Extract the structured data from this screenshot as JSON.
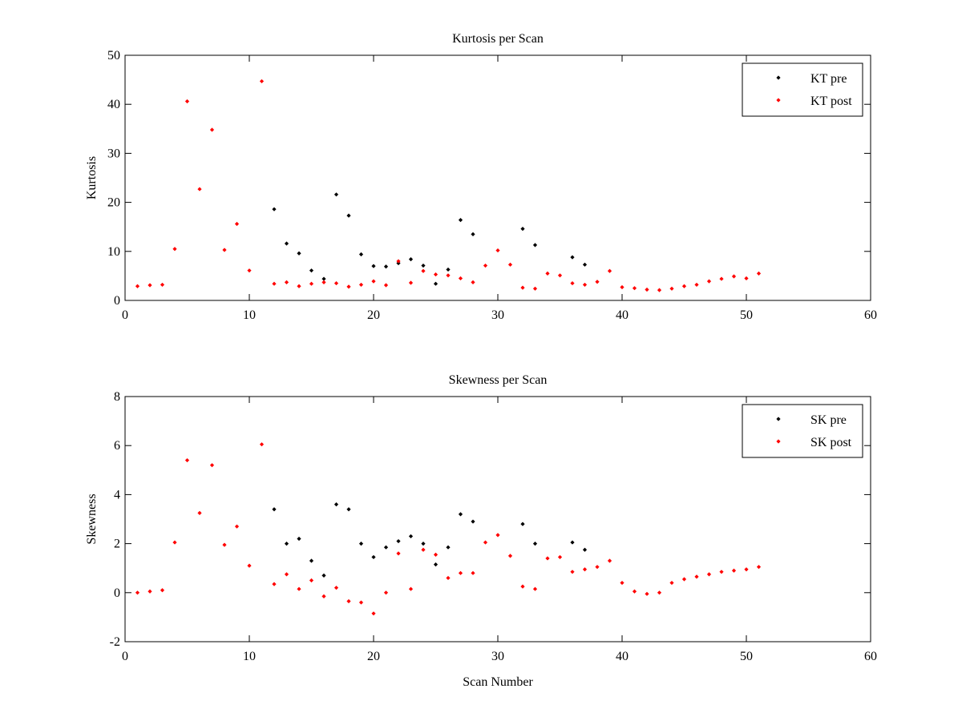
{
  "chart_data": [
    {
      "type": "scatter",
      "title": "Kurtosis per Scan",
      "xlabel": "",
      "ylabel": "Kurtosis",
      "xlim": [
        0,
        60
      ],
      "ylim": [
        0,
        50
      ],
      "xticks": [
        0,
        10,
        20,
        30,
        40,
        50,
        60
      ],
      "yticks": [
        0,
        10,
        20,
        30,
        40,
        50
      ],
      "grid": false,
      "legend_position": "top-right",
      "series": [
        {
          "name": "KT pre",
          "color": "#000000",
          "x": [
            12,
            13,
            14,
            15,
            16,
            17,
            18,
            19,
            20,
            21,
            22,
            23,
            24,
            25,
            26,
            27,
            28,
            32,
            33,
            36,
            37
          ],
          "y": [
            18.6,
            11.6,
            9.6,
            6.1,
            4.4,
            21.6,
            17.3,
            9.4,
            7.0,
            6.9,
            7.6,
            8.4,
            7.1,
            3.4,
            6.3,
            16.4,
            13.5,
            14.6,
            11.3,
            8.8,
            7.3
          ]
        },
        {
          "name": "KT post",
          "color": "#ff0000",
          "x": [
            1,
            2,
            3,
            4,
            5,
            6,
            7,
            8,
            9,
            10,
            11,
            12,
            13,
            14,
            15,
            16,
            17,
            18,
            19,
            20,
            21,
            22,
            23,
            24,
            25,
            26,
            27,
            28,
            29,
            30,
            31,
            32,
            33,
            34,
            35,
            36,
            37,
            38,
            39,
            40,
            41,
            42,
            43,
            44,
            45,
            46,
            47,
            48,
            49,
            50,
            51
          ],
          "y": [
            2.9,
            3.1,
            3.2,
            10.5,
            40.6,
            22.7,
            34.8,
            10.3,
            15.6,
            6.1,
            44.7,
            3.4,
            3.7,
            2.9,
            3.4,
            3.7,
            3.5,
            2.8,
            3.2,
            3.9,
            3.1,
            8.0,
            3.6,
            6.0,
            5.3,
            5.1,
            4.5,
            3.7,
            7.1,
            10.2,
            7.3,
            2.6,
            2.4,
            5.5,
            5.1,
            3.5,
            3.2,
            3.8,
            6.0,
            2.7,
            2.5,
            2.2,
            2.1,
            2.4,
            2.9,
            3.2,
            3.9,
            4.4,
            4.9,
            4.5,
            5.5
          ]
        }
      ]
    },
    {
      "type": "scatter",
      "title": "Skewness per Scan",
      "xlabel": "Scan Number",
      "ylabel": "Skewness",
      "xlim": [
        0,
        60
      ],
      "ylim": [
        -2,
        8
      ],
      "xticks": [
        0,
        10,
        20,
        30,
        40,
        50,
        60
      ],
      "yticks": [
        -2,
        0,
        2,
        4,
        6,
        8
      ],
      "grid": false,
      "legend_position": "top-right",
      "series": [
        {
          "name": "SK pre",
          "color": "#000000",
          "x": [
            12,
            13,
            14,
            15,
            16,
            17,
            18,
            19,
            20,
            21,
            22,
            23,
            24,
            25,
            26,
            27,
            28,
            32,
            33,
            36,
            37
          ],
          "y": [
            3.4,
            2.0,
            2.2,
            1.3,
            0.7,
            3.6,
            3.4,
            2.0,
            1.45,
            1.85,
            2.1,
            2.3,
            2.0,
            1.15,
            1.85,
            3.2,
            2.9,
            2.8,
            2.0,
            2.05,
            1.75
          ]
        },
        {
          "name": "SK post",
          "color": "#ff0000",
          "x": [
            1,
            2,
            3,
            4,
            5,
            6,
            7,
            8,
            9,
            10,
            11,
            12,
            13,
            14,
            15,
            16,
            17,
            18,
            19,
            20,
            21,
            22,
            23,
            24,
            25,
            26,
            27,
            28,
            29,
            30,
            31,
            32,
            33,
            34,
            35,
            36,
            37,
            38,
            39,
            40,
            41,
            42,
            43,
            44,
            45,
            46,
            47,
            48,
            49,
            50,
            51
          ],
          "y": [
            0.0,
            0.05,
            0.1,
            2.05,
            5.4,
            3.25,
            5.2,
            1.95,
            2.7,
            1.1,
            6.05,
            0.35,
            0.75,
            0.15,
            0.5,
            -0.15,
            0.2,
            -0.35,
            -0.4,
            -0.85,
            0.0,
            1.6,
            0.15,
            1.75,
            1.55,
            0.6,
            0.8,
            0.8,
            2.05,
            2.35,
            1.5,
            0.25,
            0.15,
            1.4,
            1.45,
            0.85,
            0.95,
            1.05,
            1.3,
            0.4,
            0.05,
            -0.05,
            0.0,
            0.4,
            0.55,
            0.65,
            0.75,
            0.85,
            0.9,
            0.95,
            1.05
          ]
        }
      ]
    }
  ]
}
